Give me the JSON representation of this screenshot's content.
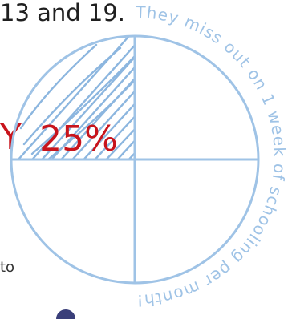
{
  "infographic": {
    "ages_text": "13 and 19.",
    "highlight_prefix": "Y",
    "percent_label": "25%",
    "continued_text": "to",
    "arc_caption": "They miss out on 1 week of schooling per month!",
    "percent_value": 25,
    "colors": {
      "circle_stroke": "#9fc3e6",
      "hatch": "#8cb6df",
      "percent": "#c8141c",
      "caption": "#9fc3e6",
      "body_text": "#1f1f1f"
    }
  }
}
